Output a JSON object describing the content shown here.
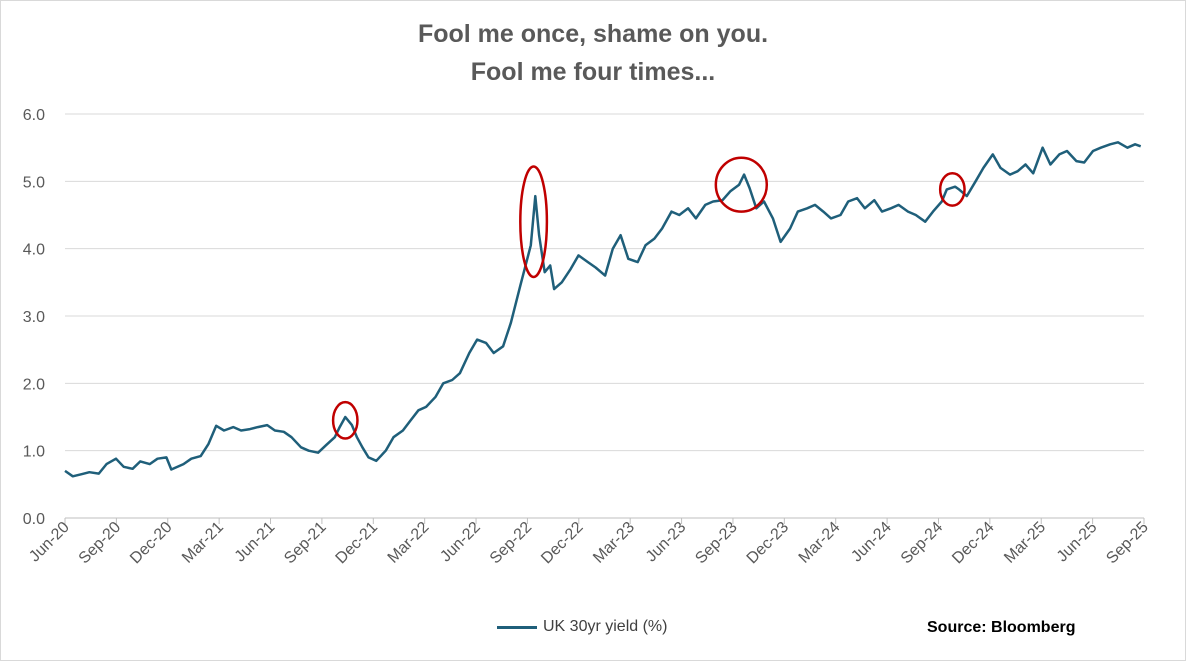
{
  "chart_data": {
    "type": "line",
    "title": [
      "Fool me once, shame on you.",
      "Fool me four times..."
    ],
    "source": "Source: Bloomberg",
    "ylim": [
      0,
      6
    ],
    "y_ticks": [
      "0.0",
      "1.0",
      "2.0",
      "3.0",
      "4.0",
      "5.0",
      "6.0"
    ],
    "x_ticks": [
      "Jun-20",
      "Sep-20",
      "Dec-20",
      "Mar-21",
      "Jun-21",
      "Sep-21",
      "Dec-21",
      "Mar-22",
      "Jun-22",
      "Sep-22",
      "Dec-22",
      "Mar-23",
      "Jun-23",
      "Sep-23",
      "Dec-23",
      "Mar-24",
      "Jun-24",
      "Sep-24",
      "Dec-24",
      "Mar-25",
      "Jun-25",
      "Sep-25"
    ],
    "grid": "horizontal",
    "legend_position": "bottom",
    "series": [
      {
        "name": "UK 30yr yield (%)",
        "color": "#1f5f7a",
        "points": [
          [
            "2020-06",
            0.7
          ],
          [
            "2020-06-15",
            0.62
          ],
          [
            "2020-07",
            0.65
          ],
          [
            "2020-07-15",
            0.68
          ],
          [
            "2020-08",
            0.66
          ],
          [
            "2020-08-15",
            0.8
          ],
          [
            "2020-09",
            0.88
          ],
          [
            "2020-09-15",
            0.76
          ],
          [
            "2020-10",
            0.73
          ],
          [
            "2020-10-15",
            0.84
          ],
          [
            "2020-11",
            0.8
          ],
          [
            "2020-11-15",
            0.88
          ],
          [
            "2020-12",
            0.9
          ],
          [
            "2020-12-10",
            0.72
          ],
          [
            "2021-01",
            0.8
          ],
          [
            "2021-01-15",
            0.88
          ],
          [
            "2021-02",
            0.92
          ],
          [
            "2021-02-15",
            1.1
          ],
          [
            "2021-03",
            1.37
          ],
          [
            "2021-03-15",
            1.3
          ],
          [
            "2021-04",
            1.35
          ],
          [
            "2021-04-15",
            1.3
          ],
          [
            "2021-05",
            1.32
          ],
          [
            "2021-05-15",
            1.35
          ],
          [
            "2021-06",
            1.38
          ],
          [
            "2021-06-15",
            1.3
          ],
          [
            "2021-07",
            1.28
          ],
          [
            "2021-07-15",
            1.2
          ],
          [
            "2021-08",
            1.05
          ],
          [
            "2021-08-15",
            1.0
          ],
          [
            "2021-09",
            0.97
          ],
          [
            "2021-09-15",
            1.08
          ],
          [
            "2021-10",
            1.2
          ],
          [
            "2021-10-10",
            1.35
          ],
          [
            "2021-10-20",
            1.5
          ],
          [
            "2021-11",
            1.38
          ],
          [
            "2021-11-10",
            1.2
          ],
          [
            "2021-11-20",
            1.05
          ],
          [
            "2021-12",
            0.9
          ],
          [
            "2021-12-15",
            0.85
          ],
          [
            "2022-01",
            1.0
          ],
          [
            "2022-01-15",
            1.2
          ],
          [
            "2022-02",
            1.3
          ],
          [
            "2022-02-15",
            1.45
          ],
          [
            "2022-03",
            1.6
          ],
          [
            "2022-03-15",
            1.65
          ],
          [
            "2022-04",
            1.8
          ],
          [
            "2022-04-15",
            2.0
          ],
          [
            "2022-05",
            2.05
          ],
          [
            "2022-05-15",
            2.15
          ],
          [
            "2022-06",
            2.45
          ],
          [
            "2022-06-15",
            2.65
          ],
          [
            "2022-07",
            2.6
          ],
          [
            "2022-07-15",
            2.45
          ],
          [
            "2022-08",
            2.55
          ],
          [
            "2022-08-15",
            2.9
          ],
          [
            "2022-09",
            3.45
          ],
          [
            "2022-09-20",
            4.05
          ],
          [
            "2022-09-28",
            4.78
          ],
          [
            "2022-10-05",
            4.2
          ],
          [
            "2022-10-15",
            3.65
          ],
          [
            "2022-10-25",
            3.75
          ],
          [
            "2022-11",
            3.4
          ],
          [
            "2022-11-15",
            3.5
          ],
          [
            "2022-12",
            3.7
          ],
          [
            "2022-12-15",
            3.9
          ],
          [
            "2023-01",
            3.8
          ],
          [
            "2023-01-15",
            3.72
          ],
          [
            "2023-02",
            3.6
          ],
          [
            "2023-02-15",
            4.0
          ],
          [
            "2023-03",
            4.2
          ],
          [
            "2023-03-15",
            3.85
          ],
          [
            "2023-04",
            3.8
          ],
          [
            "2023-04-15",
            4.05
          ],
          [
            "2023-05",
            4.15
          ],
          [
            "2023-05-15",
            4.3
          ],
          [
            "2023-06",
            4.55
          ],
          [
            "2023-06-15",
            4.5
          ],
          [
            "2023-07",
            4.6
          ],
          [
            "2023-07-15",
            4.45
          ],
          [
            "2023-08",
            4.65
          ],
          [
            "2023-08-15",
            4.7
          ],
          [
            "2023-09",
            4.72
          ],
          [
            "2023-09-15",
            4.85
          ],
          [
            "2023-10",
            4.95
          ],
          [
            "2023-10-10",
            5.1
          ],
          [
            "2023-10-20",
            4.9
          ],
          [
            "2023-11",
            4.6
          ],
          [
            "2023-11-15",
            4.7
          ],
          [
            "2023-12",
            4.45
          ],
          [
            "2023-12-15",
            4.1
          ],
          [
            "2024-01",
            4.3
          ],
          [
            "2024-01-15",
            4.55
          ],
          [
            "2024-02",
            4.6
          ],
          [
            "2024-02-15",
            4.65
          ],
          [
            "2024-03",
            4.55
          ],
          [
            "2024-03-15",
            4.45
          ],
          [
            "2024-04",
            4.5
          ],
          [
            "2024-04-15",
            4.7
          ],
          [
            "2024-05",
            4.75
          ],
          [
            "2024-05-15",
            4.6
          ],
          [
            "2024-06",
            4.72
          ],
          [
            "2024-06-15",
            4.55
          ],
          [
            "2024-07",
            4.6
          ],
          [
            "2024-07-15",
            4.65
          ],
          [
            "2024-08",
            4.55
          ],
          [
            "2024-08-15",
            4.5
          ],
          [
            "2024-09",
            4.4
          ],
          [
            "2024-09-15",
            4.55
          ],
          [
            "2024-10",
            4.7
          ],
          [
            "2024-10-10",
            4.88
          ],
          [
            "2024-10-25",
            4.92
          ],
          [
            "2024-11",
            4.88
          ],
          [
            "2024-11-15",
            4.78
          ],
          [
            "2024-12",
            5.0
          ],
          [
            "2024-12-15",
            5.2
          ],
          [
            "2025-01",
            5.4
          ],
          [
            "2025-01-15",
            5.2
          ],
          [
            "2025-02",
            5.1
          ],
          [
            "2025-02-15",
            5.15
          ],
          [
            "2025-03",
            5.25
          ],
          [
            "2025-03-15",
            5.12
          ],
          [
            "2025-04",
            5.5
          ],
          [
            "2025-04-15",
            5.25
          ],
          [
            "2025-05",
            5.4
          ],
          [
            "2025-05-15",
            5.45
          ],
          [
            "2025-06",
            5.3
          ],
          [
            "2025-06-15",
            5.28
          ],
          [
            "2025-07",
            5.45
          ],
          [
            "2025-07-15",
            5.5
          ],
          [
            "2025-08",
            5.55
          ],
          [
            "2025-08-15",
            5.58
          ],
          [
            "2025-09",
            5.5
          ],
          [
            "2025-09-15",
            5.55
          ],
          [
            "2025-09-25",
            5.52
          ]
        ]
      }
    ],
    "annotations": [
      {
        "type": "ellipse",
        "color": "#c00000",
        "x_center": "2021-10-20",
        "y_center": 1.45,
        "x_radius_days": 22,
        "y_radius": 0.27
      },
      {
        "type": "ellipse",
        "color": "#c00000",
        "x_center": "2022-09-25",
        "y_center": 4.4,
        "x_radius_days": 24,
        "y_radius": 0.82
      },
      {
        "type": "ellipse",
        "color": "#c00000",
        "x_center": "2023-10-05",
        "y_center": 4.95,
        "x_radius_days": 46,
        "y_radius": 0.4
      },
      {
        "type": "ellipse",
        "color": "#c00000",
        "x_center": "2024-10-20",
        "y_center": 4.88,
        "x_radius_days": 22,
        "y_radius": 0.24
      }
    ]
  },
  "legend": {
    "label": "UK 30yr yield (%)"
  },
  "source_label": "Source: Bloomberg"
}
